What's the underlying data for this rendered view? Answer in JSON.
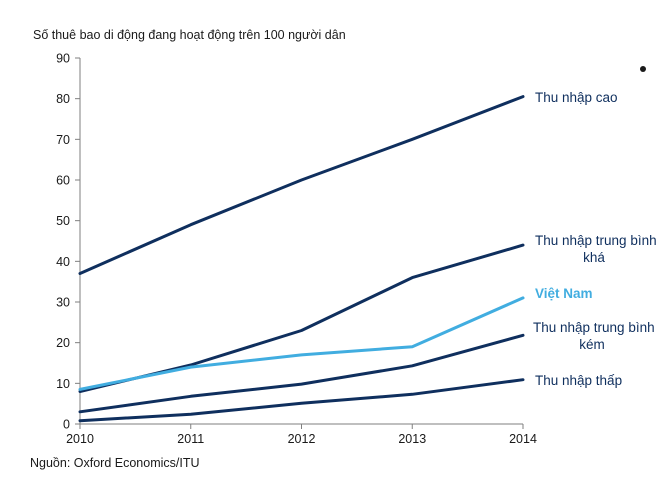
{
  "chart_data": {
    "type": "line",
    "title": "Số thuê bao di động đang hoạt động trên 100 người dân",
    "source": "Nguồn: Oxford Economics/ITU",
    "x": [
      2010,
      2011,
      2012,
      2013,
      2014
    ],
    "xlim": [
      2010,
      2014
    ],
    "ylim": [
      0,
      90
    ],
    "yticks": [
      0,
      10,
      20,
      30,
      40,
      50,
      60,
      70,
      80,
      90
    ],
    "grid": false,
    "series": [
      {
        "name": "Thu nhập cao",
        "label_lines": [
          "Thu nhập cao"
        ],
        "values": [
          37,
          49,
          60,
          70,
          80.5
        ],
        "color": "#0f2f5e",
        "label_color": "#0f2f5e"
      },
      {
        "name": "Thu nhập trung bình khá",
        "label_lines": [
          "Thu nhập trung bình",
          "khá"
        ],
        "values": [
          8,
          14.5,
          23,
          36,
          44
        ],
        "color": "#0f2f5e",
        "label_color": "#0f2f5e"
      },
      {
        "name": "Việt Nam",
        "label_lines": [
          "Việt Nam"
        ],
        "values": [
          8.5,
          14,
          17,
          19,
          31
        ],
        "color": "#41ade0",
        "label_color": "#41ade0"
      },
      {
        "name": "Thu nhập trung bình kém",
        "label_lines": [
          "Thu nhập trung bình",
          "kém"
        ],
        "values": [
          3,
          6.8,
          9.8,
          14.3,
          21.8
        ],
        "color": "#0f2f5e",
        "label_color": "#0f2f5e"
      },
      {
        "name": "Thu nhập thấp",
        "label_lines": [
          "Thu nhập thấp"
        ],
        "values": [
          0.8,
          2.4,
          5.1,
          7.3,
          10.9
        ],
        "color": "#0f2f5e",
        "label_color": "#0f2f5e"
      }
    ]
  }
}
